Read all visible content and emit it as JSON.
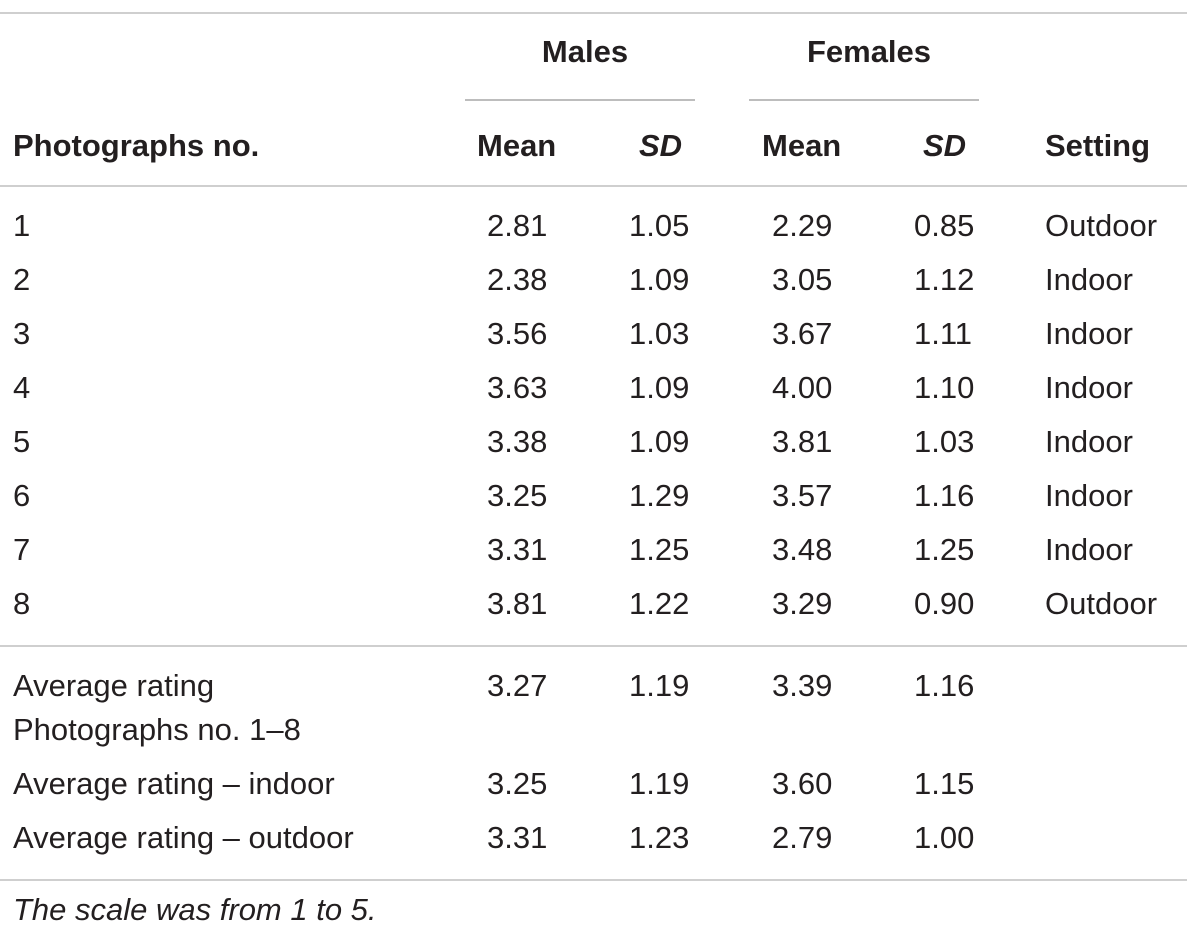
{
  "table": {
    "group_headers": {
      "males": "Males",
      "females": "Females"
    },
    "columns": {
      "photo": "Photographs no.",
      "males_mean": "Mean",
      "males_sd": "SD",
      "females_mean": "Mean",
      "females_sd": "SD",
      "setting": "Setting"
    },
    "rows": [
      {
        "no": "1",
        "males_mean": "2.81",
        "males_sd": "1.05",
        "females_mean": "2.29",
        "females_sd": "0.85",
        "setting": "Outdoor"
      },
      {
        "no": "2",
        "males_mean": "2.38",
        "males_sd": "1.09",
        "females_mean": "3.05",
        "females_sd": "1.12",
        "setting": "Indoor"
      },
      {
        "no": "3",
        "males_mean": "3.56",
        "males_sd": "1.03",
        "females_mean": "3.67",
        "females_sd": "1.11",
        "setting": "Indoor"
      },
      {
        "no": "4",
        "males_mean": "3.63",
        "males_sd": "1.09",
        "females_mean": "4.00",
        "females_sd": "1.10",
        "setting": "Indoor"
      },
      {
        "no": "5",
        "males_mean": "3.38",
        "males_sd": "1.09",
        "females_mean": "3.81",
        "females_sd": "1.03",
        "setting": "Indoor"
      },
      {
        "no": "6",
        "males_mean": "3.25",
        "males_sd": "1.29",
        "females_mean": "3.57",
        "females_sd": "1.16",
        "setting": "Indoor"
      },
      {
        "no": "7",
        "males_mean": "3.31",
        "males_sd": "1.25",
        "females_mean": "3.48",
        "females_sd": "1.25",
        "setting": "Indoor"
      },
      {
        "no": "8",
        "males_mean": "3.81",
        "males_sd": "1.22",
        "females_mean": "3.29",
        "females_sd": "0.90",
        "setting": "Outdoor"
      }
    ],
    "summary": [
      {
        "label_line1": "Average rating",
        "label_line2": "Photographs no. 1–8",
        "males_mean": "3.27",
        "males_sd": "1.19",
        "females_mean": "3.39",
        "females_sd": "1.16"
      },
      {
        "label_line1": "Average rating – indoor",
        "males_mean": "3.25",
        "males_sd": "1.19",
        "females_mean": "3.60",
        "females_sd": "1.15"
      },
      {
        "label_line1": "Average rating – outdoor",
        "males_mean": "3.31",
        "males_sd": "1.23",
        "females_mean": "2.79",
        "females_sd": "1.00"
      }
    ],
    "footnote": "The scale was from 1 to 5."
  }
}
